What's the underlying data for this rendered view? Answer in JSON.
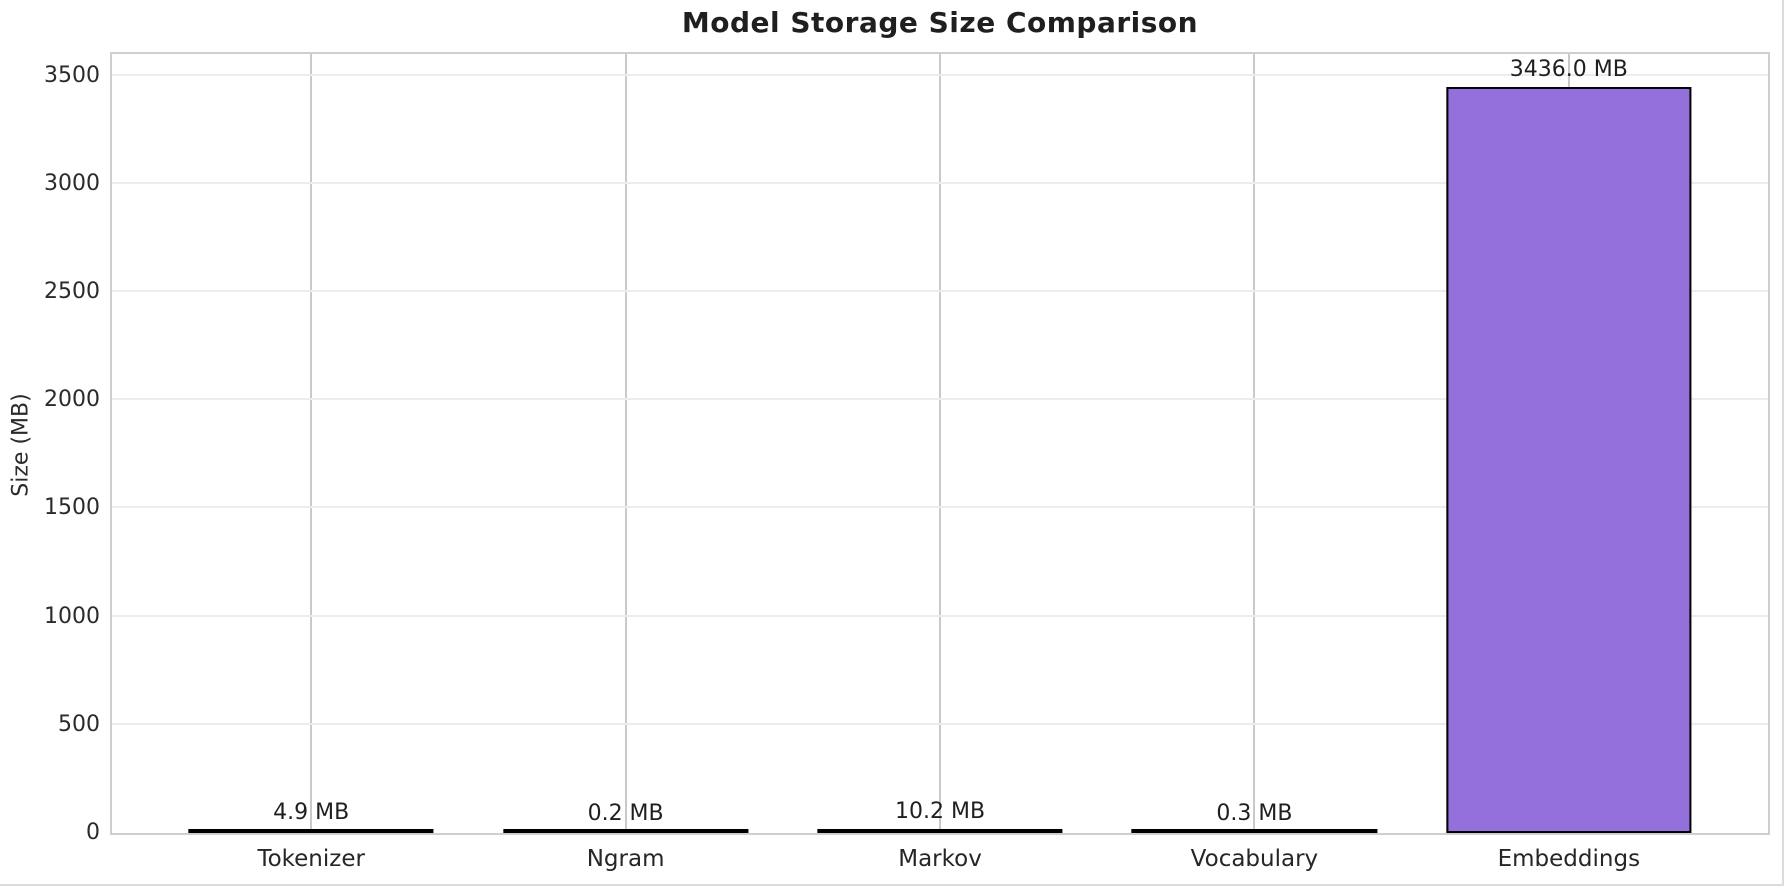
{
  "chart_data": {
    "type": "bar",
    "title": "Model Storage Size Comparison",
    "categories": [
      "Tokenizer",
      "Ngram",
      "Markov",
      "Vocabulary",
      "Embeddings"
    ],
    "values": [
      4.9,
      0.2,
      10.2,
      0.3,
      3436.0
    ],
    "value_labels": [
      "4.9 MB",
      "0.2 MB",
      "10.2 MB",
      "0.3 MB",
      "3436.0 MB"
    ],
    "xlabel": "",
    "ylabel": "Size (MB)",
    "ylim": [
      0,
      3600
    ],
    "yticks": [
      0,
      500,
      1000,
      1500,
      2000,
      2500,
      3000,
      3500
    ],
    "grid": true,
    "legend": "none",
    "colors": {
      "bar_fill": "#9370DB",
      "bar_edge": "#000000",
      "h_grid": "#ececec",
      "v_grid": "#c9c9c9",
      "spine": "#cfcfcf",
      "text": "#262626"
    }
  }
}
